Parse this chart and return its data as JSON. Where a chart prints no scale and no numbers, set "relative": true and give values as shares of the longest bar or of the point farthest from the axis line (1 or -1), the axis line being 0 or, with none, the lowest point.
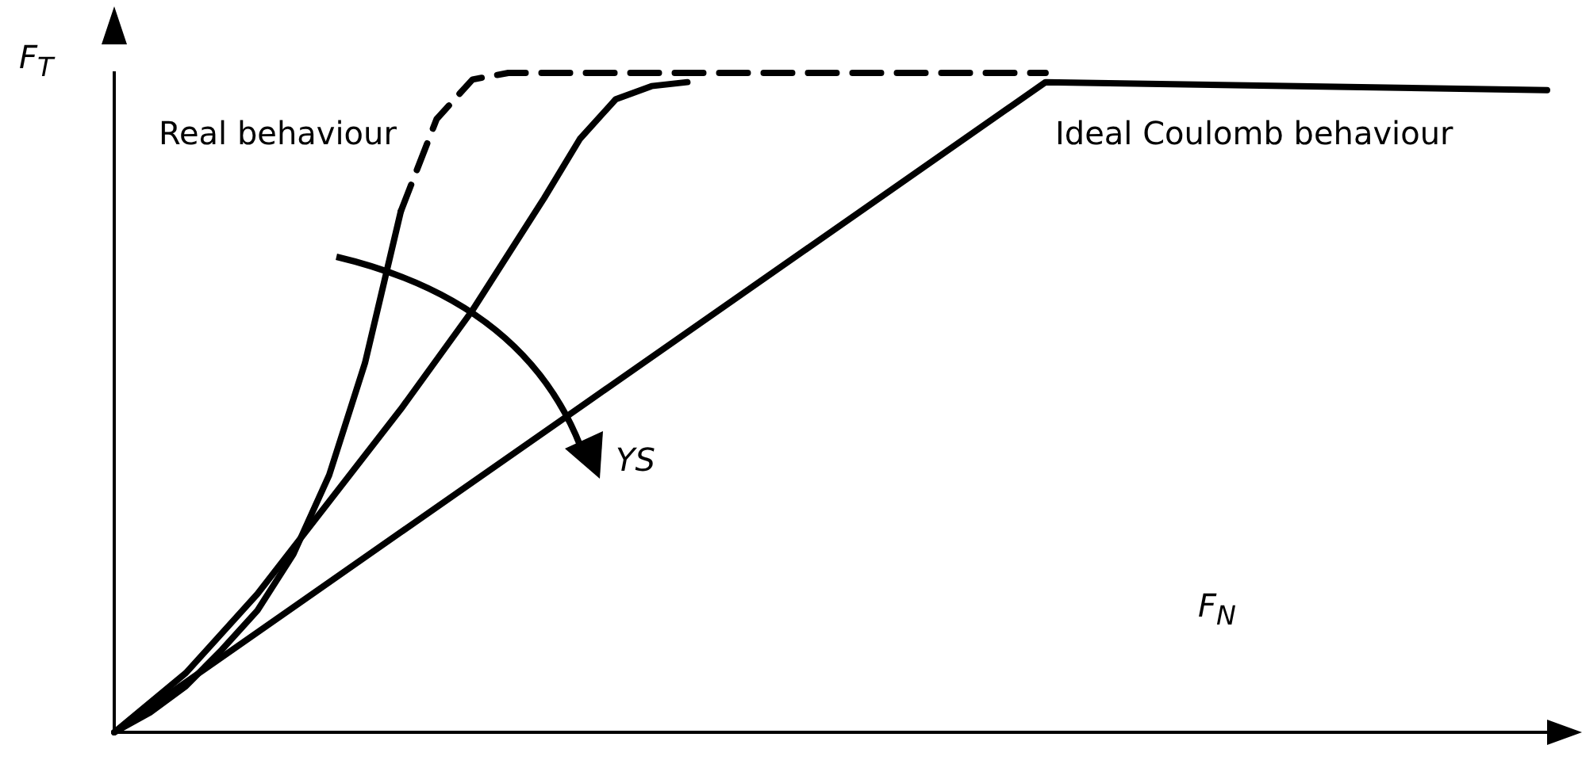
{
  "chart_data": {
    "type": "line",
    "relative": true,
    "xlabel": "F$_{N}$",
    "ylabel": "F$_{T}$",
    "annotations": [
      "Real behaviour",
      "Ideal Coulomb behaviour",
      "YS"
    ],
    "marker": "none",
    "grid": false,
    "legend": false,
    "categories": [
      null,
      null,
      null,
      null,
      null,
      null,
      null,
      null,
      null,
      null,
      null,
      null,
      null,
      null,
      null,
      null,
      null,
      null,
      null,
      null,
      null,
      null,
      null,
      null,
      null,
      null,
      null,
      null,
      null,
      null,
      null,
      null,
      null,
      null,
      null,
      null,
      null,
      null,
      null,
      null,
      null
    ],
    "series": [
      {
        "color": "#000000",
        "line_style": "solid",
        "values": [
          0,
          null,
          null,
          null,
          null,
          null,
          null,
          null,
          null,
          null,
          null,
          null,
          null,
          null,
          null,
          null,
          null,
          null,
          null,
          null,
          null,
          null,
          null,
          null,
          null,
          null,
          0.986,
          null,
          null,
          null,
          null,
          null,
          null,
          null,
          null,
          null,
          null,
          null,
          null,
          null,
          0.974
        ]
      },
      {
        "color": "#000000",
        "line_style": "solid",
        "values": [
          0,
          0.03,
          0.07,
          0.125,
          0.185,
          0.27,
          0.39,
          0.56,
          0.79,
          null,
          null,
          null,
          null,
          null,
          null,
          null,
          null,
          null,
          null,
          null,
          null,
          null,
          null,
          null,
          null,
          null,
          null,
          null,
          null,
          null,
          null,
          null,
          null,
          null,
          null,
          null,
          null,
          null,
          null,
          null,
          null
        ]
      },
      {
        "color": "#000000",
        "line_style": "dashed",
        "values": [
          null,
          null,
          null,
          null,
          null,
          null,
          null,
          null,
          0.79,
          0.93,
          0.99,
          1.0,
          null,
          null,
          null,
          null,
          null,
          null,
          null,
          null,
          null,
          null,
          null,
          null,
          null,
          null,
          1.0,
          null,
          null,
          null,
          null,
          null,
          null,
          null,
          null,
          null,
          null,
          null,
          null,
          null,
          null
        ]
      },
      {
        "color": "#000000",
        "line_style": "solid",
        "values": [
          0,
          null,
          0.09,
          null,
          0.21,
          null,
          0.35,
          null,
          0.49,
          null,
          0.64,
          null,
          0.81,
          0.9,
          0.96,
          0.98,
          0.986,
          null,
          null,
          null,
          null,
          null,
          null,
          null,
          null,
          null,
          null,
          null,
          null,
          null,
          null,
          null,
          null,
          null,
          null,
          null,
          null,
          null,
          null,
          null,
          null
        ]
      }
    ]
  }
}
